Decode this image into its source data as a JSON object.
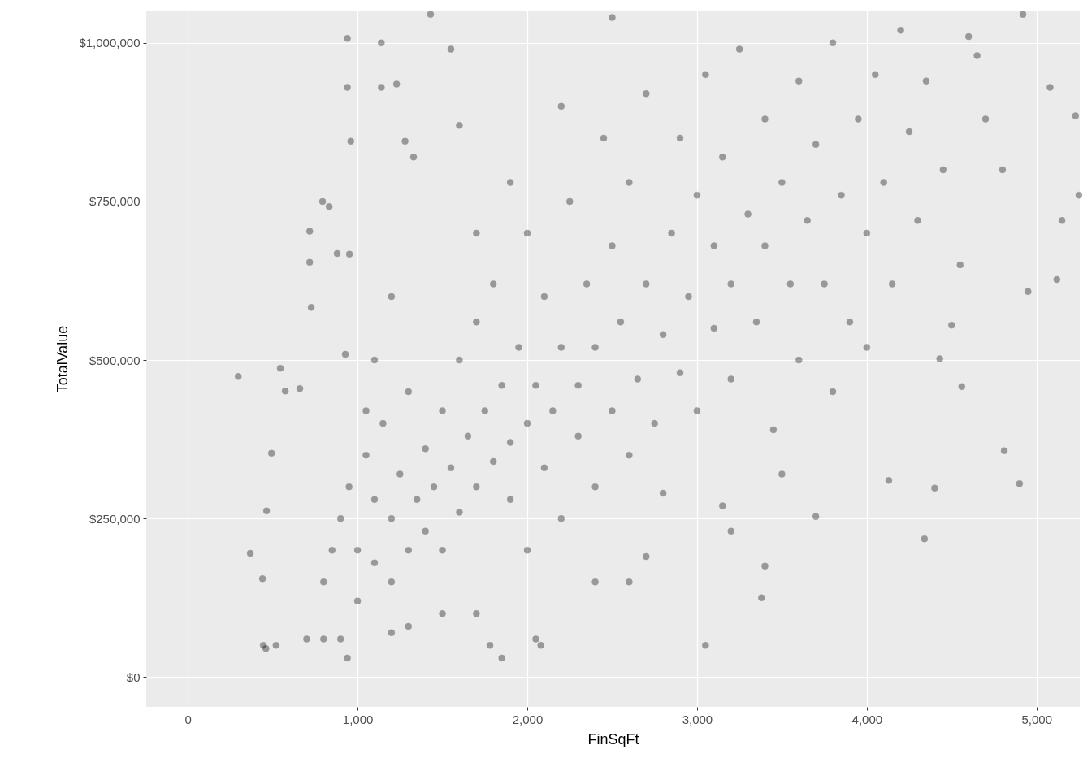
{
  "chart_data": {
    "type": "scatter",
    "xlabel": "FinSqFt",
    "ylabel": "TotalValue",
    "grid": true,
    "marker": "circle",
    "xlim": [
      -245,
      5255
    ],
    "ylim": [
      -47000,
      1051000
    ],
    "xticks": [
      0,
      {
        "value": 1000,
        "label": "1,000"
      },
      {
        "value": 2000,
        "label": "2,000"
      },
      {
        "value": 3000,
        "label": "3,000"
      },
      {
        "value": 4000,
        "label": "4,000"
      },
      {
        "value": 5000,
        "label": "5,000"
      }
    ],
    "yticks": [
      {
        "value": 0,
        "label": "$0"
      },
      {
        "value": 250000,
        "label": "$250,000"
      },
      {
        "value": 500000,
        "label": "$500,000"
      },
      {
        "value": 750000,
        "label": "$750,000"
      },
      {
        "value": 1000000,
        "label": "$1,000,000"
      }
    ],
    "series": [
      {
        "color": "#000000",
        "x": [
          297,
          368,
          440,
          464,
          493,
          545,
          574,
          660,
          718,
          718,
          794,
          833,
          727,
          880,
          952,
          928,
          445,
          460,
          520,
          940,
          940,
          940,
          960,
          1140,
          1140,
          1230,
          1280,
          1330,
          1430,
          1550,
          1600,
          1850,
          1780,
          2080,
          2050,
          4810,
          4900,
          4950,
          4560,
          4400,
          4340,
          4130,
          3700,
          3380,
          3050,
          3150,
          3400,
          5120,
          5250,
          5230,
          5150,
          4920,
          5080,
          4600,
          4800,
          4500,
          4430,
          800,
          850,
          900,
          950,
          1000,
          1000,
          1050,
          1100,
          1100,
          1150,
          1200,
          1200,
          1250,
          1300,
          1300,
          1350,
          1400,
          1400,
          1450,
          1500,
          1500,
          1550,
          1600,
          1600,
          1650,
          1700,
          1700,
          1750,
          1800,
          1800,
          1850,
          1900,
          1900,
          1950,
          2000,
          2000,
          2000,
          2050,
          2100,
          2100,
          2150,
          2200,
          2200,
          2250,
          2300,
          2300,
          2350,
          2400,
          2400,
          2450,
          2500,
          2500,
          2550,
          2600,
          2600,
          2650,
          2700,
          2700,
          2750,
          2800,
          2800,
          2850,
          2900,
          2900,
          2950,
          3000,
          3000,
          3050,
          3100,
          3100,
          3150,
          3200,
          3200,
          3250,
          3300,
          3350,
          3400,
          3400,
          3450,
          3500,
          3550,
          3600,
          3600,
          3650,
          3700,
          3750,
          3800,
          3850,
          3900,
          3950,
          4000,
          4050,
          4100,
          4150,
          4200,
          4250,
          4300,
          4350,
          4450,
          4550,
          4650,
          4700,
          1700,
          1500,
          1300,
          1200,
          900,
          800,
          700,
          1100,
          1050,
          1700,
          2600,
          2400,
          2700,
          3200,
          3500,
          3800,
          4000,
          1200,
          1900,
          2200,
          2500
        ],
        "values": [
          474000,
          195000,
          155000,
          262000,
          353000,
          487000,
          451000,
          455000,
          703000,
          654000,
          750000,
          742000,
          583000,
          668000,
          667000,
          509000,
          50000,
          45000,
          50000,
          30000,
          1007000,
          930000,
          845000,
          1000000,
          930000,
          935000,
          845000,
          820000,
          1045000,
          990000,
          870000,
          30000,
          50000,
          50000,
          60000,
          357000,
          305000,
          608000,
          458000,
          298000,
          218000,
          310000,
          253000,
          125000,
          50000,
          270000,
          175000,
          627000,
          760000,
          885000,
          720000,
          1045000,
          930000,
          1010000,
          800000,
          555000,
          502000,
          150000,
          200000,
          250000,
          300000,
          120000,
          200000,
          350000,
          180000,
          280000,
          400000,
          150000,
          250000,
          320000,
          200000,
          450000,
          280000,
          230000,
          360000,
          300000,
          200000,
          420000,
          330000,
          260000,
          500000,
          380000,
          300000,
          560000,
          420000,
          340000,
          620000,
          460000,
          280000,
          370000,
          520000,
          200000,
          400000,
          700000,
          460000,
          330000,
          600000,
          420000,
          250000,
          520000,
          750000,
          380000,
          460000,
          620000,
          300000,
          520000,
          850000,
          420000,
          680000,
          560000,
          350000,
          780000,
          470000,
          620000,
          920000,
          400000,
          540000,
          290000,
          700000,
          480000,
          850000,
          600000,
          420000,
          760000,
          950000,
          550000,
          680000,
          820000,
          470000,
          620000,
          990000,
          730000,
          560000,
          880000,
          680000,
          390000,
          780000,
          620000,
          940000,
          500000,
          720000,
          840000,
          620000,
          1000000,
          760000,
          560000,
          880000,
          700000,
          950000,
          780000,
          620000,
          1020000,
          860000,
          720000,
          940000,
          800000,
          650000,
          980000,
          880000,
          100000,
          100000,
          80000,
          70000,
          60000,
          60000,
          60000,
          500000,
          420000,
          700000,
          150000,
          150000,
          190000,
          230000,
          320000,
          450000,
          520000,
          600000,
          780000,
          900000,
          1040000
        ]
      }
    ]
  }
}
